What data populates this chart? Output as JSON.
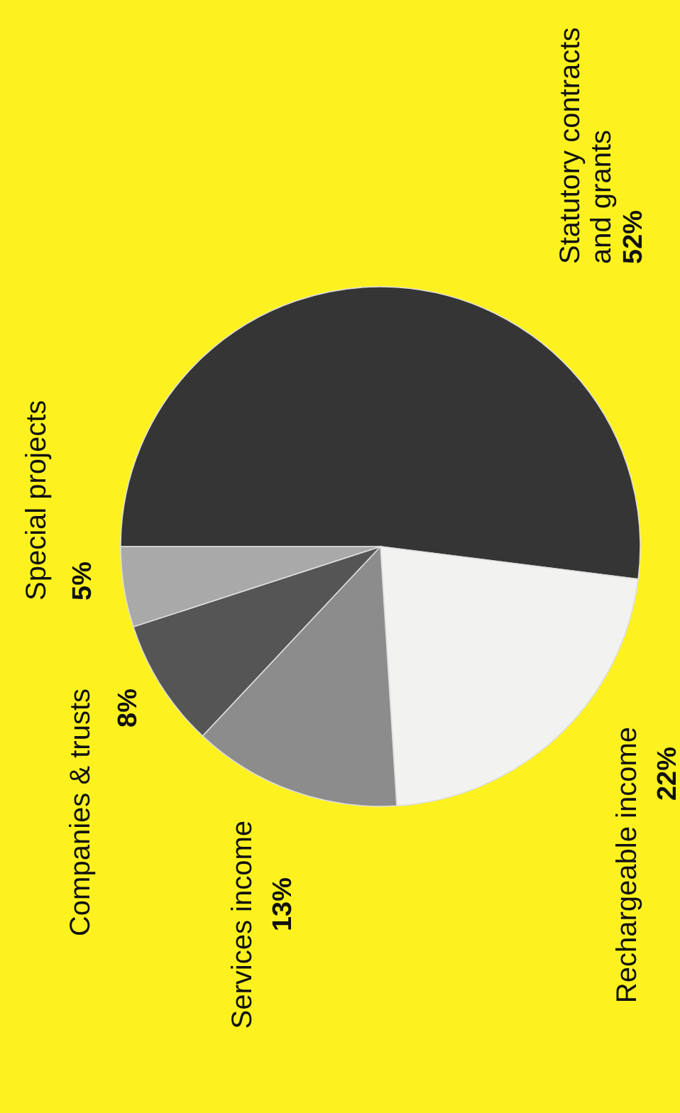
{
  "chart_data": {
    "type": "pie",
    "categories": [
      "Statutory contracts and grants",
      "Rechargeable income",
      "Services income",
      "Companies & trusts",
      "Special projects"
    ],
    "values": [
      52,
      22,
      13,
      8,
      5
    ],
    "value_labels": [
      "52%",
      "22%",
      "13%",
      "8%",
      "5%"
    ],
    "colors": [
      "#353535",
      "#f2f2f0",
      "#8c8c8c",
      "#555555",
      "#a9a9a9"
    ]
  }
}
